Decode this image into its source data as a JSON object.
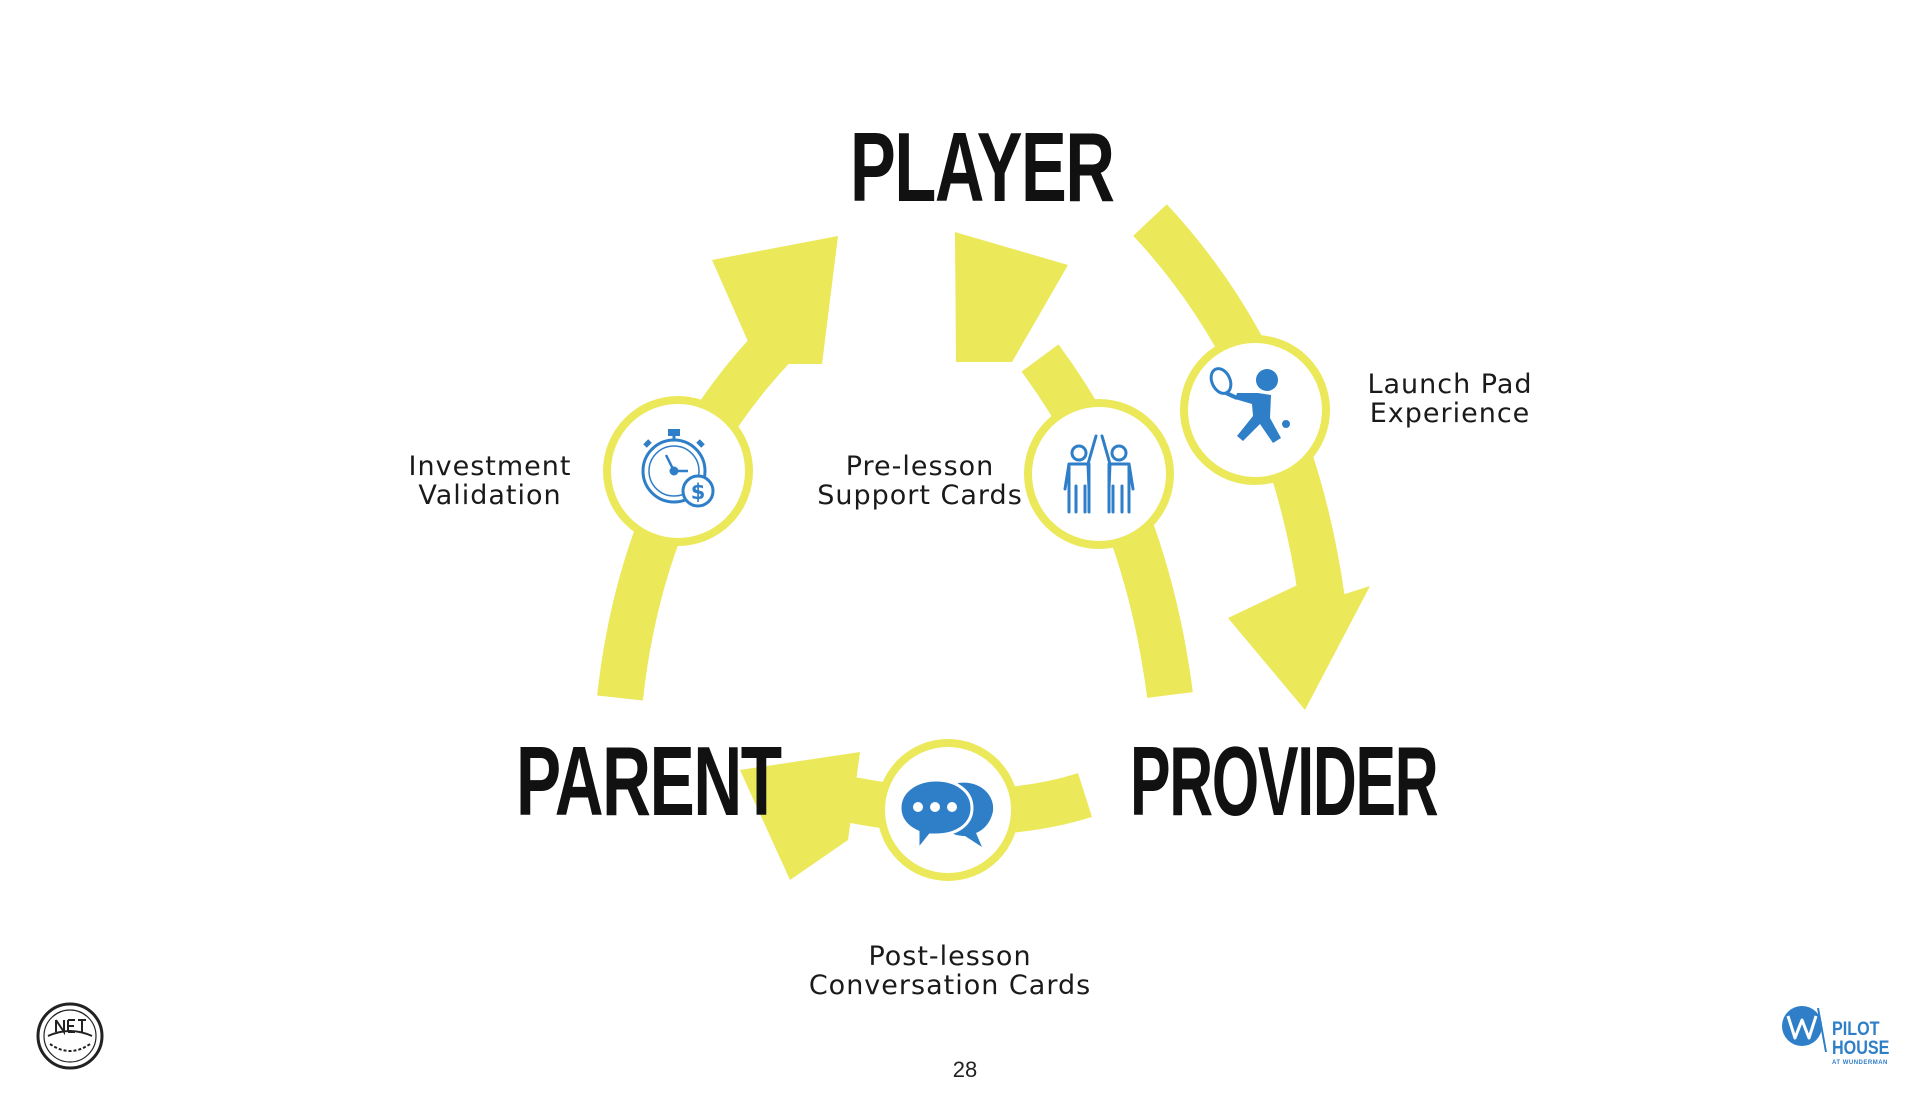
{
  "nodes": {
    "player": "PLAYER",
    "parent": "PARENT",
    "provider": "PROVIDER"
  },
  "touchpoints": {
    "investment_validation": [
      "Investment",
      "Validation"
    ],
    "pre_lesson": [
      "Pre-lesson",
      "Support Cards"
    ],
    "launch_pad": [
      "Launch Pad",
      "Experience"
    ],
    "post_lesson": [
      "Post-lesson",
      "Conversation Cards"
    ]
  },
  "icons": {
    "investment_validation": "stopwatch-dollar-icon",
    "pre_lesson": "high-five-icon",
    "launch_pad": "tennis-player-icon",
    "post_lesson": "chat-bubbles-icon"
  },
  "page_number": "28",
  "logos": {
    "left": "NET GENERATION",
    "right_main": [
      "PILOT",
      "HOUSE"
    ],
    "right_sub": "AT WUNDERMAN"
  },
  "colors": {
    "arrow": "#ebe85a",
    "icon": "#2e7ec8",
    "text": "#111111",
    "background": "#ffffff"
  }
}
